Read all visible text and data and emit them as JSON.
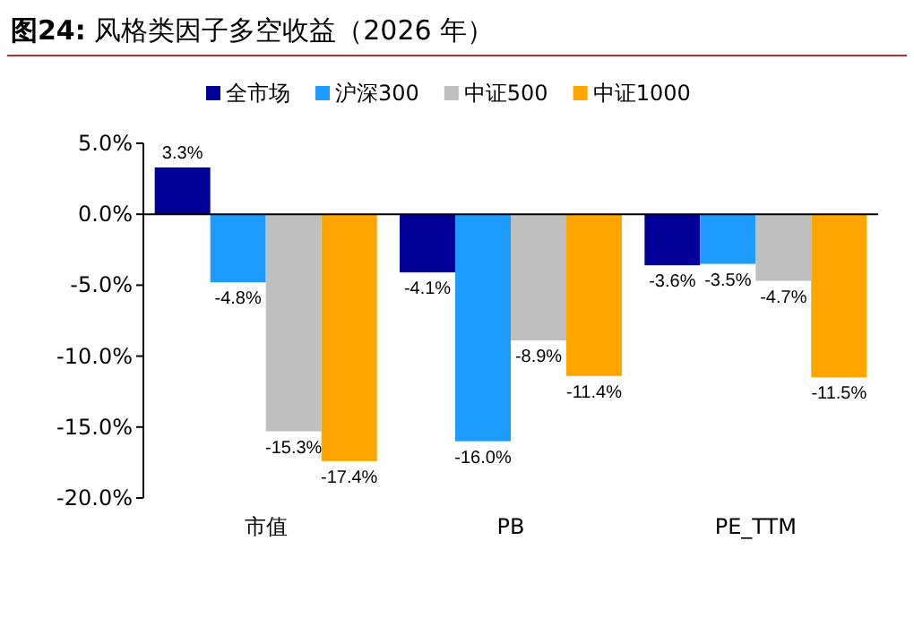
{
  "chart_data": {
    "type": "bar",
    "title": "**图24:** 风格类因子多空收益（2026 年）",
    "categories": [
      "市值",
      "PB",
      "PE_TTM"
    ],
    "series": [
      {
        "name": "全市场",
        "color": "#000099",
        "values": [
          3.3,
          -4.1,
          -3.6
        ],
        "value_labels": [
          "3.3%",
          "-4.1%",
          "-3.6%"
        ]
      },
      {
        "name": "沪深300",
        "color": "#1e9bff",
        "values": [
          -4.8,
          -16.0,
          -3.5
        ],
        "value_labels": [
          "-4.8%",
          "-16.0%",
          "-3.5%"
        ]
      },
      {
        "name": "中证500",
        "color": "#bfbfbf",
        "values": [
          -15.3,
          -8.9,
          -4.7
        ],
        "value_labels": [
          "-15.3%",
          "-8.9%",
          "-4.7%"
        ]
      },
      {
        "name": "中证1000",
        "color": "#ffa500",
        "values": [
          -17.4,
          -11.4,
          -11.5
        ],
        "value_labels": [
          "-17.4%",
          "-11.4%",
          "-11.5%"
        ]
      }
    ],
    "ylim": [
      -20,
      5
    ],
    "yticks": [
      {
        "value": 5,
        "label": "5.0%"
      },
      {
        "value": 0,
        "label": "0.0%"
      },
      {
        "value": -5,
        "label": "-5.0%"
      },
      {
        "value": -10,
        "label": "-10.0%"
      },
      {
        "value": -15,
        "label": "-15.0%"
      },
      {
        "value": -20,
        "label": "-20.0%"
      }
    ],
    "legend": "top"
  }
}
